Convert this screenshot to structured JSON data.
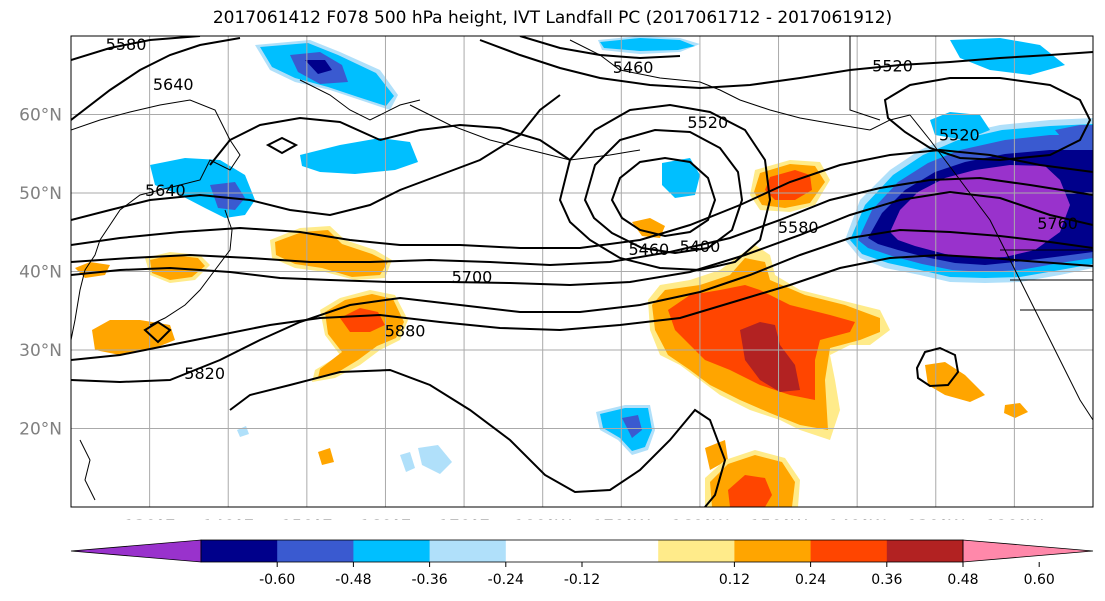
{
  "title": "2017061412 F078 500 hPa height, IVT Landfall PC (2017061712 - 2017061912)",
  "map": {
    "projection": "equirectangular",
    "lon_range": [
      120,
      250
    ],
    "lat_range": [
      10,
      70
    ],
    "grid": true,
    "lat_labels": [
      {
        "lat": 60,
        "text": "60°N"
      },
      {
        "lat": 50,
        "text": "50°N"
      },
      {
        "lat": 40,
        "text": "40°N"
      },
      {
        "lat": 30,
        "text": "30°N"
      },
      {
        "lat": 20,
        "text": "20°N"
      }
    ],
    "lon_labels": [
      {
        "lon": 130,
        "text": "130°E"
      },
      {
        "lon": 140,
        "text": "140°E"
      },
      {
        "lon": 150,
        "text": "150°E"
      },
      {
        "lon": 160,
        "text": "160°E"
      },
      {
        "lon": 170,
        "text": "170°E"
      },
      {
        "lon": 180,
        "text": "180°W"
      },
      {
        "lon": 190,
        "text": "170°W"
      },
      {
        "lon": 200,
        "text": "160°W"
      },
      {
        "lon": 210,
        "text": "150°W"
      },
      {
        "lon": 220,
        "text": "140°W"
      },
      {
        "lon": 230,
        "text": "130°W"
      },
      {
        "lon": 240,
        "text": "120°W"
      }
    ],
    "contour_labels": [
      {
        "text": "5580",
        "lon": 127,
        "lat": 68.7
      },
      {
        "text": "5640",
        "lon": 133,
        "lat": 63.6
      },
      {
        "text": "5640",
        "lon": 132,
        "lat": 50.1
      },
      {
        "text": "5460",
        "lon": 191.5,
        "lat": 65.8
      },
      {
        "text": "5520",
        "lon": 201,
        "lat": 58.8
      },
      {
        "text": "5520",
        "lon": 224.5,
        "lat": 66.0
      },
      {
        "text": "5520",
        "lon": 233,
        "lat": 57.2
      },
      {
        "text": "5460",
        "lon": 193.5,
        "lat": 42.6
      },
      {
        "text": "5400",
        "lon": 200,
        "lat": 43.0
      },
      {
        "text": "5580",
        "lon": 212.5,
        "lat": 45.4
      },
      {
        "text": "5700",
        "lon": 171,
        "lat": 39.1
      },
      {
        "text": "5880",
        "lon": 162.5,
        "lat": 32.2
      },
      {
        "text": "5820",
        "lon": 137,
        "lat": 26.8
      },
      {
        "text": "5760",
        "lon": 245.5,
        "lat": 45.9
      }
    ],
    "shading_colors": {
      "neg_060": "#9932cc",
      "neg_048": "#00008b",
      "neg_036": "#3a5ad0",
      "neg_024": "#00bfff",
      "neg_012": "#b0e0fa",
      "pos_012": "#ffeb8a",
      "pos_024": "#ffa500",
      "pos_036": "#ff4500",
      "pos_048": "#b22222",
      "pos_060": "#ff88aa"
    }
  },
  "colorbar": {
    "colors": [
      "#9932cc",
      "#00008b",
      "#3a5ad0",
      "#00bfff",
      "#b0e0fa",
      "#ffffff",
      "#ffffff",
      "#ffeb8a",
      "#ffa500",
      "#ff4500",
      "#b22222",
      "#ff88aa"
    ],
    "ticks": [
      "-0.60",
      "-0.48",
      "-0.36",
      "-0.24",
      "-0.12",
      "0.12",
      "0.24",
      "0.36",
      "0.48",
      "0.60"
    ]
  }
}
